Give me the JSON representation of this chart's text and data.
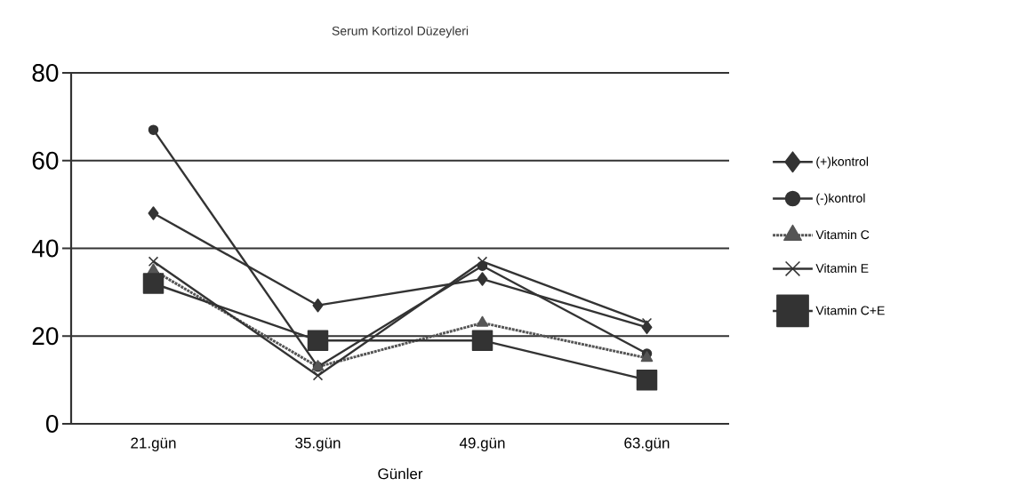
{
  "chart_data": {
    "type": "line",
    "title": "Serum Kortizol Düzeyleri",
    "xlabel": "Günler",
    "categories": [
      "21.gün",
      "35.gün",
      "49.gün",
      "63.gün"
    ],
    "series": [
      {
        "name": "(+)kontrol",
        "color": "#333333",
        "marker": "diamond",
        "line_style": "solid",
        "values": [
          48,
          27,
          33,
          22
        ]
      },
      {
        "name": "(-)kontrol",
        "color": "#333333",
        "marker": "circle",
        "line_style": "solid",
        "values": [
          67,
          13,
          36,
          16
        ]
      },
      {
        "name": "Vitamin C",
        "color": "#555555",
        "marker": "triangle",
        "line_style": "dotted",
        "values": [
          35,
          13,
          23,
          15
        ]
      },
      {
        "name": "Vitamin E",
        "color": "#333333",
        "marker": "cross",
        "line_style": "solid",
        "values": [
          37,
          11,
          37,
          23
        ]
      },
      {
        "name": "Vitamin C+E",
        "color": "#333333",
        "marker": "square",
        "line_style": "solid",
        "values": [
          32,
          19,
          19,
          10
        ]
      }
    ],
    "ylim": [
      0,
      80
    ],
    "yticks": [
      0,
      20,
      40,
      60,
      80
    ],
    "grid": "y",
    "legend": "right"
  }
}
